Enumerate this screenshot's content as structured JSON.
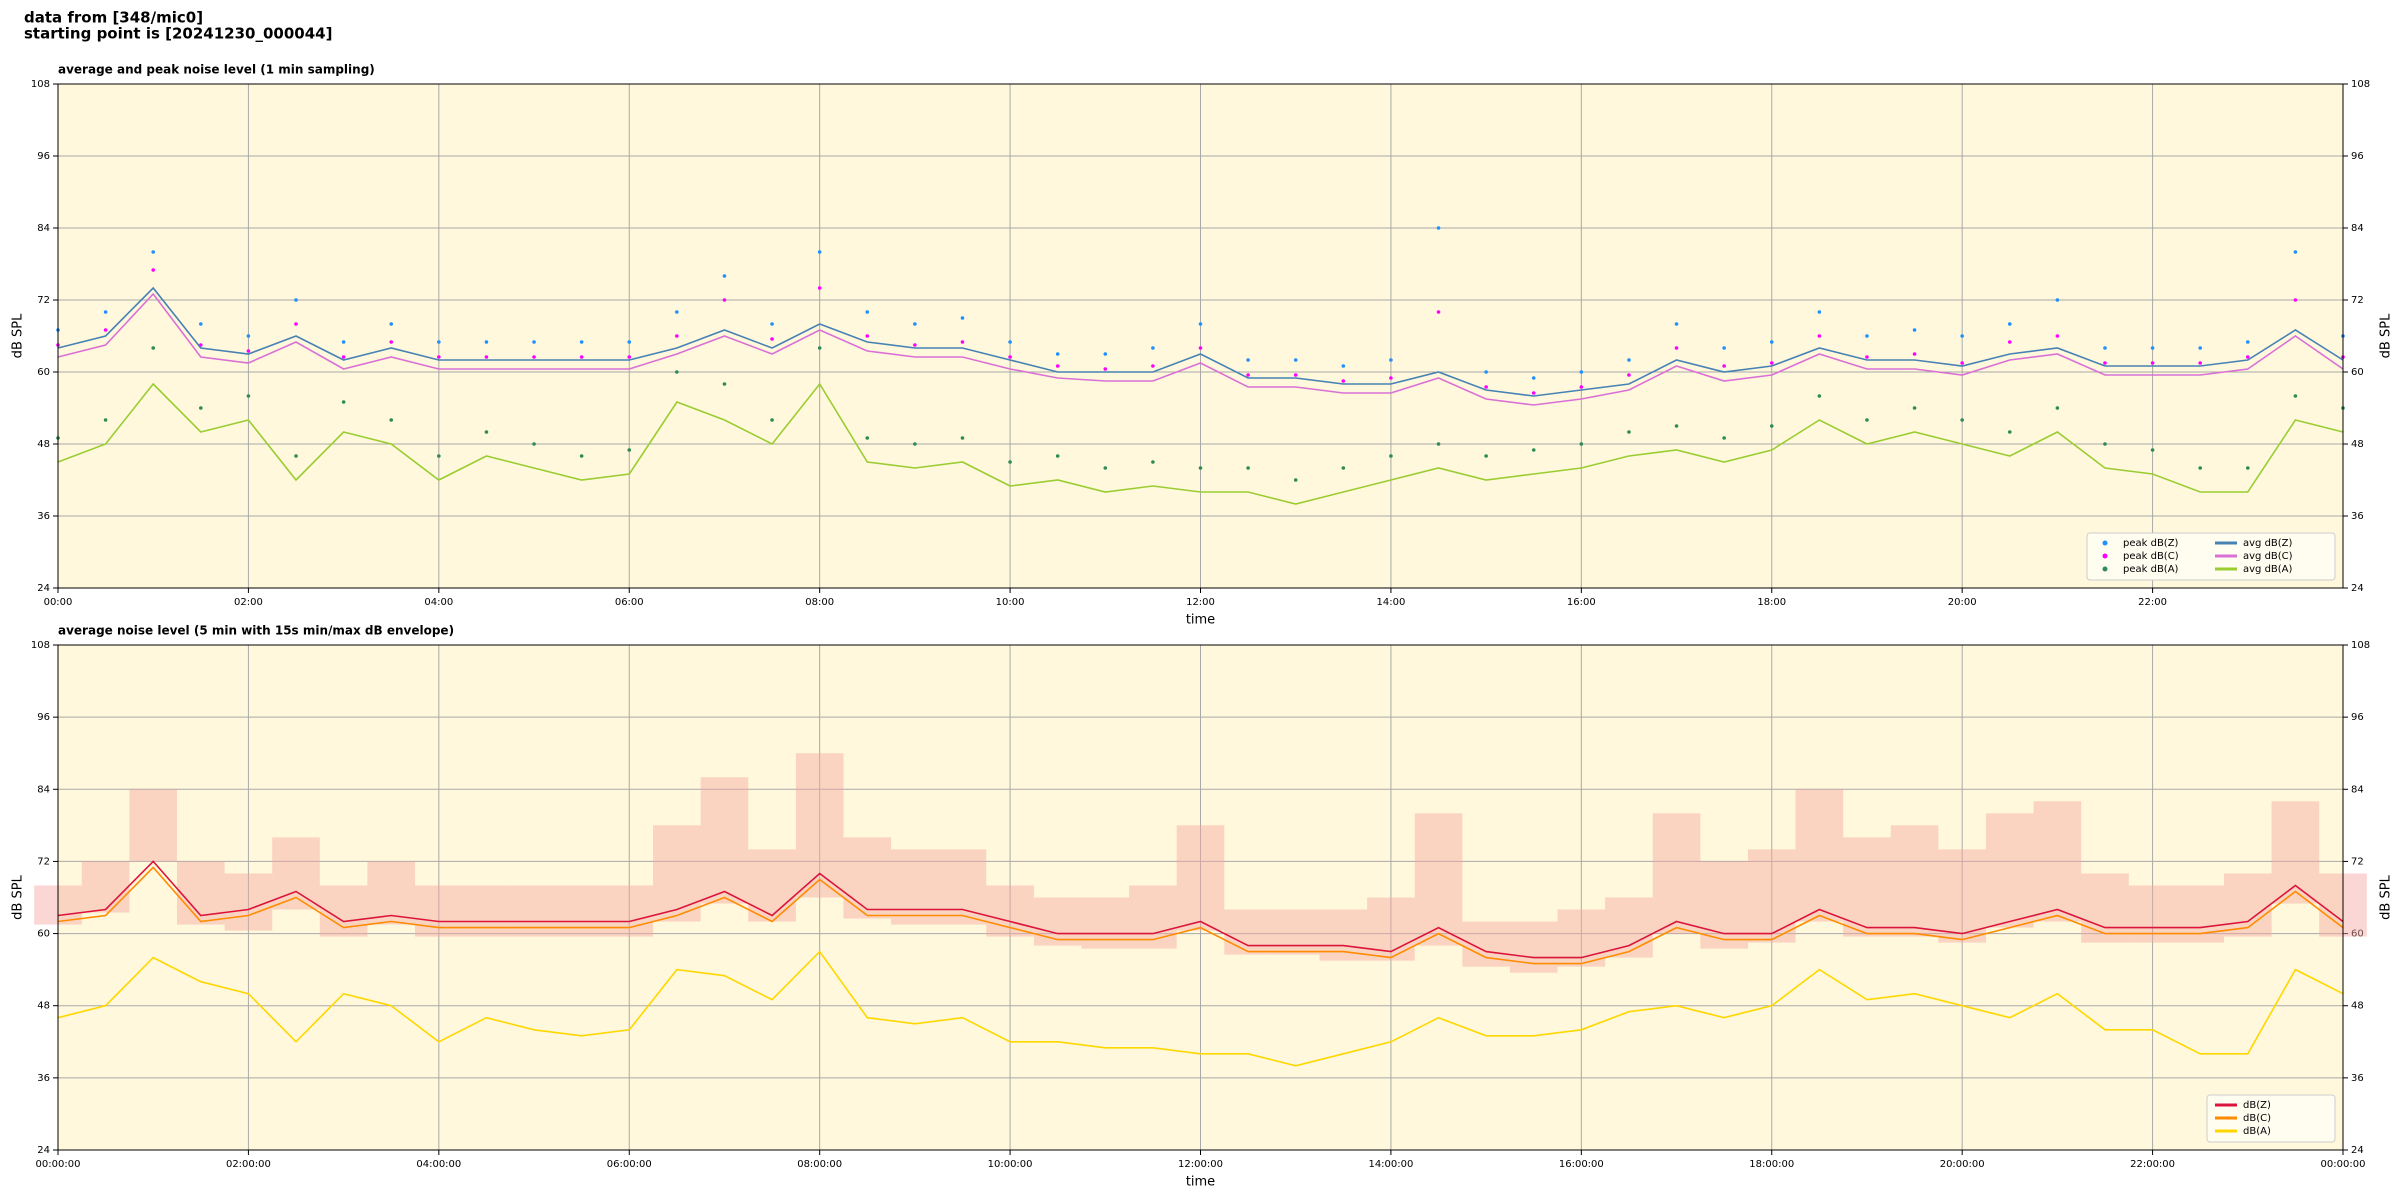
{
  "header": {
    "line1": "data from [348/mic0]",
    "line2": "starting point is [20241230_000044]"
  },
  "chart_data": [
    {
      "type": "line",
      "title": "average and peak noise level (1 min sampling)",
      "x_label": "time",
      "y_label": "dB SPL",
      "background": "#fff8dc",
      "grid": true,
      "legend": "lower right",
      "legend_columns": 2,
      "xlim": [
        0,
        24
      ],
      "ylim": [
        24,
        108
      ],
      "yticks": [
        24,
        36,
        48,
        60,
        72,
        84,
        96,
        108
      ],
      "xticks": [
        {
          "value": 0,
          "label": "00:00"
        },
        {
          "value": 2,
          "label": "02:00"
        },
        {
          "value": 4,
          "label": "04:00"
        },
        {
          "value": 6,
          "label": "06:00"
        },
        {
          "value": 8,
          "label": "08:00"
        },
        {
          "value": 10,
          "label": "10:00"
        },
        {
          "value": 12,
          "label": "12:00"
        },
        {
          "value": 14,
          "label": "14:00"
        },
        {
          "value": 16,
          "label": "16:00"
        },
        {
          "value": 18,
          "label": "18:00"
        },
        {
          "value": 20,
          "label": "20:00"
        },
        {
          "value": 22,
          "label": "22:00"
        }
      ],
      "x": [
        0,
        0.5,
        1,
        1.5,
        2,
        2.5,
        3,
        3.5,
        4,
        4.5,
        5,
        5.5,
        6,
        6.5,
        7,
        7.5,
        8,
        8.5,
        9,
        9.5,
        10,
        10.5,
        11,
        11.5,
        12,
        12.5,
        13,
        13.5,
        14,
        14.5,
        15,
        15.5,
        16,
        16.5,
        17,
        17.5,
        18,
        18.5,
        19,
        19.5,
        20,
        20.5,
        21,
        21.5,
        22,
        22.5,
        23,
        23.5,
        24
      ],
      "series": [
        {
          "name": "peak dB(Z)",
          "kind": "points",
          "color": "#1e90ff",
          "values": [
            67,
            70,
            80,
            68,
            66,
            72,
            65,
            68,
            65,
            65,
            65,
            65,
            65,
            70,
            76,
            68,
            80,
            70,
            68,
            69,
            65,
            63,
            63,
            64,
            68,
            62,
            62,
            61,
            62,
            84,
            60,
            59,
            60,
            62,
            68,
            64,
            65,
            70,
            66,
            67,
            66,
            68,
            72,
            64,
            64,
            64,
            65,
            80,
            66
          ]
        },
        {
          "name": "peak dB(C)",
          "kind": "points",
          "color": "#ff00ff",
          "values": [
            64.5,
            67,
            77,
            64.5,
            63.5,
            68,
            62.5,
            65,
            62.5,
            62.5,
            62.5,
            62.5,
            62.5,
            66,
            72,
            65.5,
            74,
            66,
            64.5,
            65,
            62.5,
            61,
            60.5,
            61,
            64,
            59.5,
            59.5,
            58.5,
            59,
            70,
            57.5,
            56.5,
            57.5,
            59.5,
            64,
            61,
            61.5,
            66,
            62.5,
            63,
            61.5,
            65,
            66,
            61.5,
            61.5,
            61.5,
            62.5,
            72,
            62.5
          ]
        },
        {
          "name": "peak dB(A)",
          "kind": "points",
          "color": "#2e8b57",
          "values": [
            49,
            52,
            64,
            54,
            56,
            46,
            55,
            52,
            46,
            50,
            48,
            46,
            47,
            60,
            58,
            52,
            64,
            49,
            48,
            49,
            45,
            46,
            44,
            45,
            44,
            44,
            42,
            44,
            46,
            48,
            46,
            47,
            48,
            50,
            51,
            49,
            51,
            56,
            52,
            54,
            52,
            50,
            54,
            48,
            47,
            44,
            44,
            56,
            54
          ]
        },
        {
          "name": "avg dB(Z)",
          "kind": "line",
          "color": "#4682b4",
          "values": [
            64,
            66,
            74,
            64,
            63,
            66,
            62,
            64,
            62,
            62,
            62,
            62,
            62,
            64,
            67,
            64,
            68,
            65,
            64,
            64,
            62,
            60,
            60,
            60,
            63,
            59,
            59,
            58,
            58,
            60,
            57,
            56,
            57,
            58,
            62,
            60,
            61,
            64,
            62,
            62,
            61,
            63,
            64,
            61,
            61,
            61,
            62,
            67,
            62
          ]
        },
        {
          "name": "avg dB(C)",
          "kind": "line",
          "color": "#da70d6",
          "values": [
            62.5,
            64.5,
            73,
            62.5,
            61.5,
            65,
            60.5,
            62.5,
            60.5,
            60.5,
            60.5,
            60.5,
            60.5,
            63,
            66,
            63,
            67,
            63.5,
            62.5,
            62.5,
            60.5,
            59,
            58.5,
            58.5,
            61.5,
            57.5,
            57.5,
            56.5,
            56.5,
            59,
            55.5,
            54.5,
            55.5,
            57,
            61,
            58.5,
            59.5,
            63,
            60.5,
            60.5,
            59.5,
            62,
            63,
            59.5,
            59.5,
            59.5,
            60.5,
            66,
            60.5
          ]
        },
        {
          "name": "avg dB(A)",
          "kind": "line",
          "color": "#9acd32",
          "values": [
            45,
            48,
            58,
            50,
            52,
            42,
            50,
            48,
            42,
            46,
            44,
            42,
            43,
            55,
            52,
            48,
            58,
            45,
            44,
            45,
            41,
            42,
            40,
            41,
            40,
            40,
            38,
            40,
            42,
            44,
            42,
            43,
            44,
            46,
            47,
            45,
            47,
            52,
            48,
            50,
            48,
            46,
            50,
            44,
            43,
            40,
            40,
            52,
            50
          ]
        }
      ]
    },
    {
      "type": "line",
      "title": "average noise level (5 min with 15s min/max dB envelope)",
      "x_label": "time",
      "y_label": "dB SPL",
      "background": "#fff8dc",
      "grid": true,
      "legend": "lower right",
      "legend_columns": 1,
      "xlim": [
        0,
        24
      ],
      "ylim": [
        24,
        108
      ],
      "yticks": [
        24,
        36,
        48,
        60,
        72,
        84,
        96,
        108
      ],
      "xticks": [
        {
          "value": 0,
          "label": "00:00:00"
        },
        {
          "value": 2,
          "label": "02:00:00"
        },
        {
          "value": 4,
          "label": "04:00:00"
        },
        {
          "value": 6,
          "label": "06:00:00"
        },
        {
          "value": 8,
          "label": "08:00:00"
        },
        {
          "value": 10,
          "label": "10:00:00"
        },
        {
          "value": 12,
          "label": "12:00:00"
        },
        {
          "value": 14,
          "label": "14:00:00"
        },
        {
          "value": 16,
          "label": "16:00:00"
        },
        {
          "value": 18,
          "label": "18:00:00"
        },
        {
          "value": 20,
          "label": "20:00:00"
        },
        {
          "value": 22,
          "label": "22:00:00"
        },
        {
          "value": 24,
          "label": "00:00:00"
        }
      ],
      "x": [
        0,
        0.5,
        1,
        1.5,
        2,
        2.5,
        3,
        3.5,
        4,
        4.5,
        5,
        5.5,
        6,
        6.5,
        7,
        7.5,
        8,
        8.5,
        9,
        9.5,
        10,
        10.5,
        11,
        11.5,
        12,
        12.5,
        13,
        13.5,
        14,
        14.5,
        15,
        15.5,
        16,
        16.5,
        17,
        17.5,
        18,
        18.5,
        19,
        19.5,
        20,
        20.5,
        21,
        21.5,
        22,
        22.5,
        23,
        23.5,
        24
      ],
      "envelope": {
        "color": "#f4a6a0",
        "upper": [
          68,
          72,
          84,
          72,
          70,
          76,
          68,
          72,
          68,
          68,
          68,
          68,
          68,
          78,
          86,
          74,
          90,
          76,
          74,
          74,
          68,
          66,
          66,
          68,
          78,
          64,
          64,
          64,
          66,
          80,
          62,
          62,
          64,
          66,
          80,
          72,
          74,
          84,
          76,
          78,
          74,
          80,
          82,
          70,
          68,
          68,
          70,
          82,
          70
        ],
        "lower": [
          61.5,
          63.5,
          72,
          61.5,
          60.5,
          64,
          59.5,
          61.5,
          59.5,
          59.5,
          59.5,
          59.5,
          59.5,
          62,
          65,
          62,
          66,
          62.5,
          61.5,
          61.5,
          59.5,
          58,
          57.5,
          57.5,
          60.5,
          56.5,
          56.5,
          55.5,
          55.5,
          58,
          54.5,
          53.5,
          54.5,
          56,
          60,
          57.5,
          58.5,
          62,
          59.5,
          59.5,
          58.5,
          61,
          62,
          58.5,
          58.5,
          58.5,
          59.5,
          65,
          59.5
        ]
      },
      "series": [
        {
          "name": "dB(Z)",
          "kind": "line",
          "color": "#dc143c",
          "values": [
            63,
            64,
            72,
            63,
            64,
            67,
            62,
            63,
            62,
            62,
            62,
            62,
            62,
            64,
            67,
            63,
            70,
            64,
            64,
            64,
            62,
            60,
            60,
            60,
            62,
            58,
            58,
            58,
            57,
            61,
            57,
            56,
            56,
            58,
            62,
            60,
            60,
            64,
            61,
            61,
            60,
            62,
            64,
            61,
            61,
            61,
            62,
            68,
            62
          ]
        },
        {
          "name": "dB(C)",
          "kind": "line",
          "color": "#ff8c00",
          "values": [
            62,
            63,
            71,
            62,
            63,
            66,
            61,
            62,
            61,
            61,
            61,
            61,
            61,
            63,
            66,
            62,
            69,
            63,
            63,
            63,
            61,
            59,
            59,
            59,
            61,
            57,
            57,
            57,
            56,
            60,
            56,
            55,
            55,
            57,
            61,
            59,
            59,
            63,
            60,
            60,
            59,
            61,
            63,
            60,
            60,
            60,
            61,
            67,
            61
          ]
        },
        {
          "name": "dB(A)",
          "kind": "line",
          "color": "#ffd700",
          "values": [
            46,
            48,
            56,
            52,
            50,
            42,
            50,
            48,
            42,
            46,
            44,
            43,
            44,
            54,
            53,
            49,
            57,
            46,
            45,
            46,
            42,
            42,
            41,
            41,
            40,
            40,
            38,
            40,
            42,
            46,
            43,
            43,
            44,
            47,
            48,
            46,
            48,
            54,
            49,
            50,
            48,
            46,
            50,
            44,
            44,
            40,
            40,
            54,
            50
          ]
        }
      ]
    }
  ]
}
